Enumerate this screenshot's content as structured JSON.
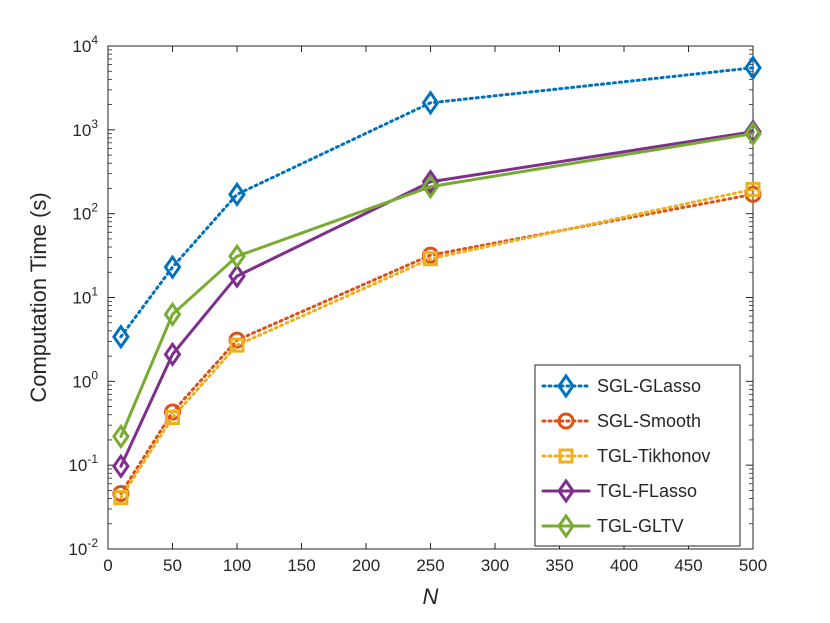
{
  "chart_data": {
    "type": "line",
    "title": "",
    "xlabel": "N",
    "ylabel": "Computation Time (s)",
    "x": [
      10,
      50,
      100,
      250,
      500
    ],
    "xlim": [
      0,
      500
    ],
    "ylim": [
      0.01,
      10000
    ],
    "yscale": "log",
    "xticks": [
      "0",
      "50",
      "100",
      "150",
      "200",
      "250",
      "300",
      "350",
      "400",
      "450",
      "500"
    ],
    "yticks": [
      {
        "base": "10",
        "exp": "-2"
      },
      {
        "base": "10",
        "exp": "-1"
      },
      {
        "base": "10",
        "exp": "0"
      },
      {
        "base": "10",
        "exp": "1"
      },
      {
        "base": "10",
        "exp": "2"
      },
      {
        "base": "10",
        "exp": "3"
      },
      {
        "base": "10",
        "exp": "4"
      }
    ],
    "grid": false,
    "legend_position": "bottom-right",
    "series": [
      {
        "name": "SGL-GLasso",
        "color": "#0072BD",
        "line": "dotted",
        "marker": "diamond",
        "values": [
          3.4,
          23,
          170,
          2100,
          5500
        ]
      },
      {
        "name": "SGL-Smooth",
        "color": "#D95319",
        "line": "dotted",
        "marker": "circle",
        "values": [
          0.046,
          0.43,
          3.1,
          32,
          170
        ]
      },
      {
        "name": "TGL-Tikhonov",
        "color": "#EDB120",
        "line": "dotted",
        "marker": "square",
        "values": [
          0.041,
          0.37,
          2.7,
          29,
          195
        ]
      },
      {
        "name": "TGL-FLasso",
        "color": "#7E2F8E",
        "line": "solid",
        "marker": "diamond",
        "values": [
          0.097,
          2.1,
          18,
          240,
          950
        ]
      },
      {
        "name": "TGL-GLTV",
        "color": "#77AC30",
        "line": "solid",
        "marker": "diamond",
        "values": [
          0.22,
          6.3,
          31,
          210,
          900
        ]
      }
    ]
  }
}
